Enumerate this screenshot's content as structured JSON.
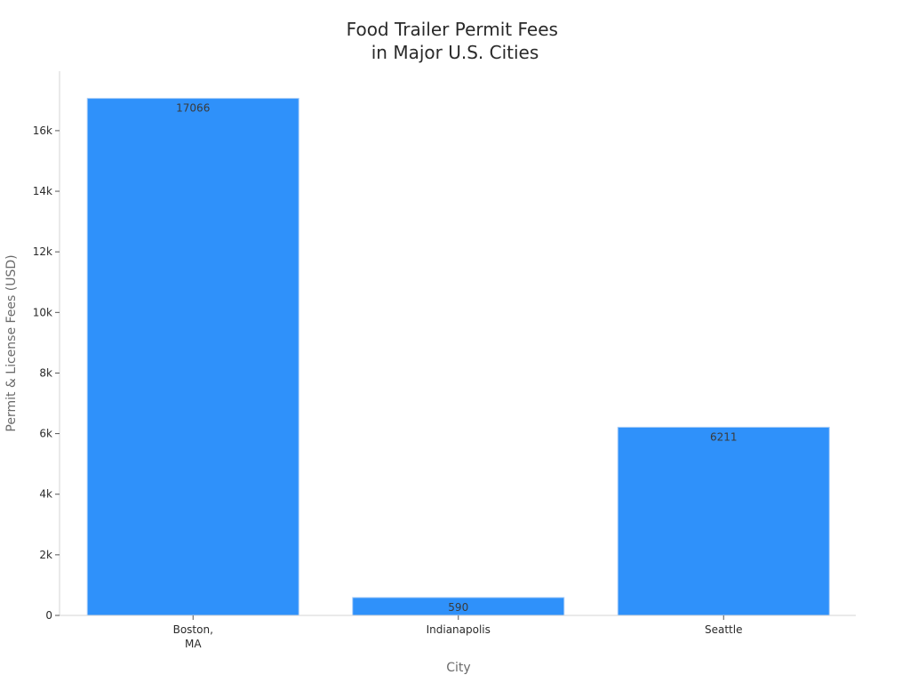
{
  "chart_data": {
    "type": "bar",
    "title": [
      "Food Trailer Permit Fees",
      "in Major U.S. Cities"
    ],
    "xlabel": "City",
    "ylabel": "Permit & License Fees (USD)",
    "categories": [
      [
        "Boston,",
        "MA"
      ],
      [
        "Indianapolis"
      ],
      [
        "Seattle"
      ]
    ],
    "values": [
      17066,
      590,
      6211
    ],
    "data_labels": [
      "17066",
      "590",
      "6211"
    ],
    "yticks": [
      0,
      2000,
      4000,
      6000,
      8000,
      10000,
      12000,
      14000,
      16000
    ],
    "ytick_labels": [
      "0",
      "2k",
      "4k",
      "6k",
      "8k",
      "10k",
      "12k",
      "14k",
      "16k"
    ],
    "ylim": [
      0,
      17964
    ],
    "grid": false,
    "bar_color": "#2f91fa",
    "bar_edge_color": "#a9cdf8",
    "axis_color": "#d5d5d5"
  }
}
